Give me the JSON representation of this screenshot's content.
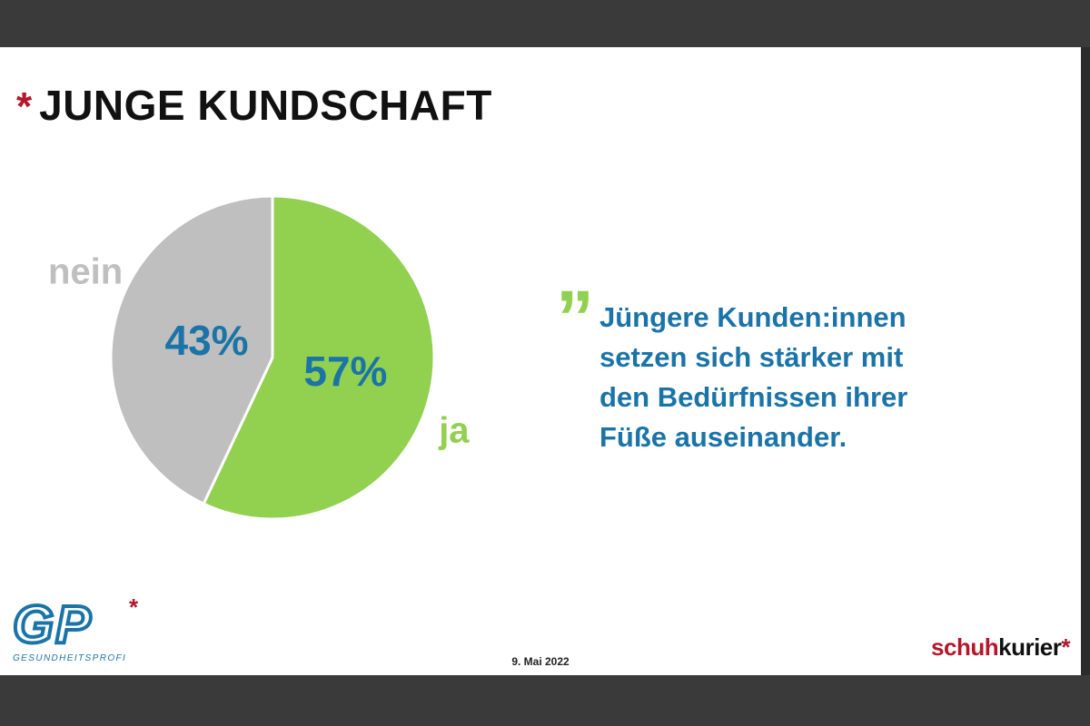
{
  "slide": {
    "title": "JUNGE KUNDSCHAFT",
    "title_star": "*",
    "date": "9. Mai 2022"
  },
  "chart_data": {
    "type": "pie",
    "slices": [
      {
        "label": "ja",
        "value": 57,
        "value_label": "57%",
        "color": "#92d050"
      },
      {
        "label": "nein",
        "value": 43,
        "value_label": "43%",
        "color": "#bfbfbf"
      }
    ],
    "value_label_color": "#1a74a7"
  },
  "quote": {
    "mark": "”",
    "mark_color": "#92d050",
    "text_color": "#1a74a7",
    "lines": [
      "Jüngere Kunden:innen",
      "setzen sich stärker mit",
      "den Bedürfnissen ihrer",
      "Füße auseinander."
    ]
  },
  "logos": {
    "left": {
      "letters": "GP",
      "star": "*",
      "subtitle": "GESUNDHEITSPROFI"
    },
    "right": {
      "part1": "schuh",
      "part2": "kurier",
      "star": "*"
    }
  }
}
